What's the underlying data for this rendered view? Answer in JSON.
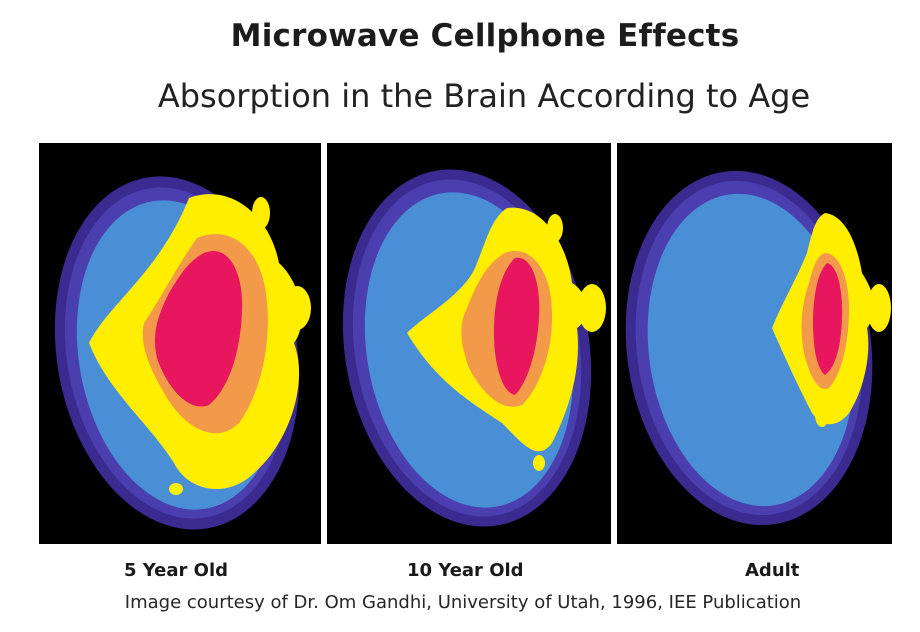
{
  "header": {
    "title": "Microwave Cellphone Effects",
    "subtitle": "Absorption in the Brain According to Age"
  },
  "panels": [
    {
      "label": "5 Year Old"
    },
    {
      "label": "10 Year Old"
    },
    {
      "label": "Adult"
    }
  ],
  "credit": "Image courtesy of Dr. Om Gandhi, University of Utah, 1996, IEE Publication",
  "colors": {
    "background": "#000000",
    "outer_ring": "#3b2a8f",
    "tissue": "#4a8fd6",
    "low_absorption": "#ffee00",
    "mid_absorption": "#f39a4a",
    "high_absorption": "#e8165e"
  }
}
